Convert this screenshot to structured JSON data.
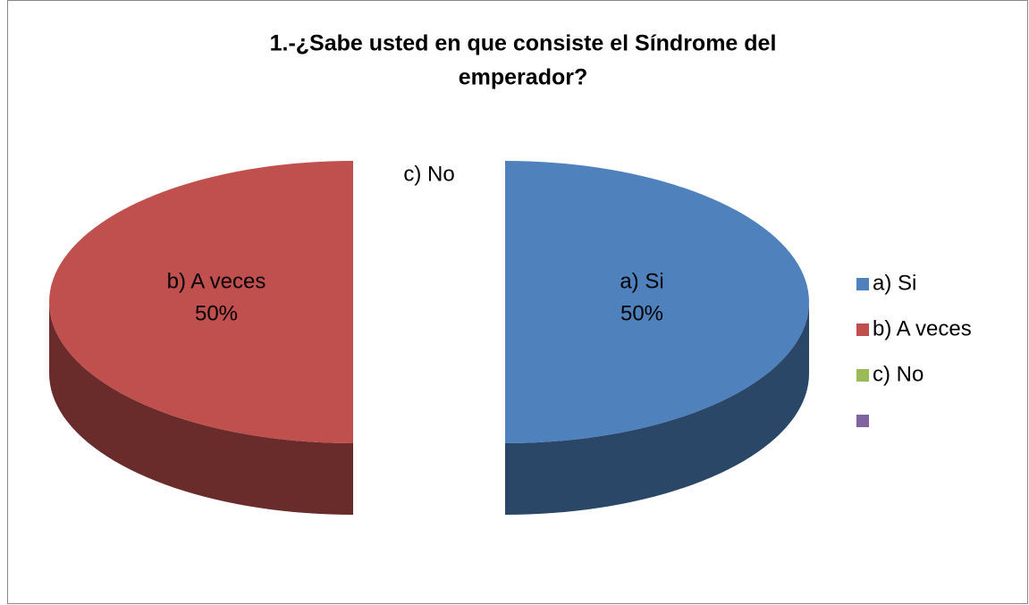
{
  "chart_data": {
    "type": "pie",
    "title": "1.-¿Sabe usted en que consiste el Síndrome del emperador?",
    "title_lines": [
      "1.-¿Sabe usted en que consiste el Síndrome del",
      "emperador?"
    ],
    "categories": [
      "a) Si",
      "b) A veces",
      "c) No",
      null
    ],
    "values": [
      50,
      50,
      0,
      0
    ],
    "value_labels": [
      "50%",
      "50%",
      null,
      null
    ],
    "colors": [
      "#4f81bd",
      "#c0504d",
      "#9bbb59",
      "#8064a2"
    ],
    "legend": "right"
  }
}
